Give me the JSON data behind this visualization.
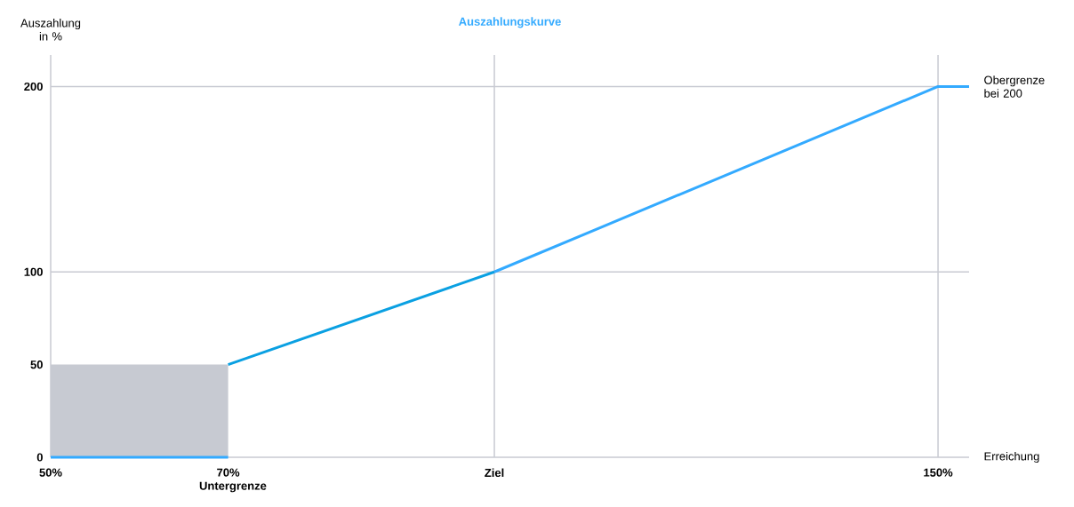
{
  "chart_data": {
    "type": "line",
    "title": "Auszahlungskurve",
    "xlabel": "Erreichung",
    "ylabel": "Auszahlung in %",
    "xlim": [
      50,
      153.5
    ],
    "ylim": [
      0,
      217
    ],
    "xticks": [
      {
        "value": 50,
        "label": "50%"
      },
      {
        "value": 70,
        "label": "70% Untergrenze"
      },
      {
        "value": 100,
        "label": "Ziel"
      },
      {
        "value": 150,
        "label": "150%"
      }
    ],
    "yticks": [
      0,
      50,
      100,
      200
    ],
    "ref_lines": [
      {
        "axis": "x",
        "value": 100,
        "color": "#c8cad2"
      },
      {
        "axis": "x",
        "value": 150,
        "color": "#c8cad2"
      },
      {
        "axis": "y",
        "value": 100,
        "color": "#c8cad2"
      },
      {
        "axis": "y",
        "value": 200,
        "color": "#c8cad2"
      }
    ],
    "series": [
      {
        "type": "area",
        "color": "#c7cad2",
        "x": [
          50,
          70
        ],
        "values": [
          50,
          50
        ]
      },
      {
        "color": "#33aaff",
        "x": [
          50,
          70
        ],
        "values": [
          0,
          0
        ]
      },
      {
        "color": "#0aa0e2",
        "x": [
          70,
          100
        ],
        "values": [
          50,
          100
        ]
      },
      {
        "color": "#33aaff",
        "x": [
          100,
          150,
          153.5
        ],
        "values": [
          100,
          200,
          200
        ]
      }
    ],
    "annotations": [
      {
        "text": "Obergrenze bei 200",
        "x": 153.5,
        "y": 200
      }
    ]
  }
}
